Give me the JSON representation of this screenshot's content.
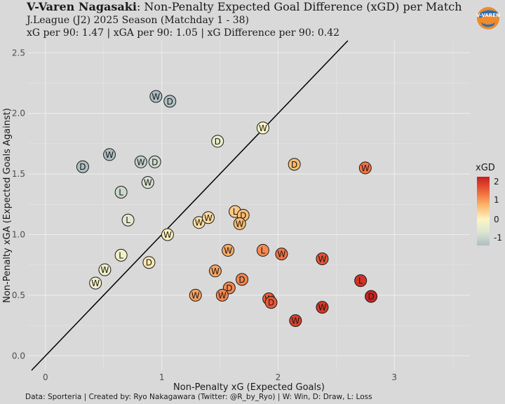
{
  "header": {
    "team": "V-Varen Nagasaki",
    "title_rest": ": Non-Penalty Expected Goal Difference (xGD) per Match",
    "subtitle1": "J.League (J2) 2025 Season (Matchday 1 - 38)",
    "subtitle2": "xG per 90: 1.47 | xGA per 90: 1.05 | xG Difference per 90: 0.42"
  },
  "logo": {
    "icon": "club-crest-icon",
    "text": "V-VAREN"
  },
  "caption": "Data: Sporteria | Created by: Ryo Nakagawara (Twitter: @R_by_Ryo) | W: Win, D: Draw, L: Loss",
  "legend": {
    "title": "xGD",
    "labels": [
      "2",
      "1",
      "0",
      "-1"
    ],
    "values": [
      2,
      1,
      0,
      -1
    ]
  },
  "colors": {
    "background": "#d9d9d9",
    "grid": "#eeeeee",
    "high": "#c81d1e",
    "mid": "#fdf5c4",
    "low": "#aebfc2"
  },
  "chart_data": {
    "type": "scatter",
    "xlabel": "Non-Penalty xG (Expected Goals)",
    "ylabel": "Non-Penalty xGA (Expected Goals Against)",
    "xlim": [
      -0.15,
      3.65
    ],
    "ylim": [
      -0.12,
      2.6
    ],
    "x_ticks": [
      "0",
      "1",
      "2",
      "3"
    ],
    "y_ticks": [
      "0.0",
      "0.5",
      "1.0",
      "1.5",
      "2.0",
      "2.5"
    ],
    "grid": true,
    "reference_line": "y = x",
    "points": [
      {
        "x": 0.95,
        "y": 2.14,
        "result": "W"
      },
      {
        "x": 1.07,
        "y": 2.1,
        "result": "D"
      },
      {
        "x": 0.55,
        "y": 1.66,
        "result": "W"
      },
      {
        "x": 0.32,
        "y": 1.56,
        "result": "D"
      },
      {
        "x": 0.82,
        "y": 1.6,
        "result": "W"
      },
      {
        "x": 0.94,
        "y": 1.6,
        "result": "D"
      },
      {
        "x": 0.88,
        "y": 1.43,
        "result": "W"
      },
      {
        "x": 0.65,
        "y": 1.35,
        "result": "L"
      },
      {
        "x": 0.71,
        "y": 1.12,
        "result": "L"
      },
      {
        "x": 1.05,
        "y": 1.0,
        "result": "W"
      },
      {
        "x": 0.65,
        "y": 0.83,
        "result": "L"
      },
      {
        "x": 0.89,
        "y": 0.77,
        "result": "D"
      },
      {
        "x": 0.51,
        "y": 0.71,
        "result": "W"
      },
      {
        "x": 0.43,
        "y": 0.6,
        "result": "W"
      },
      {
        "x": 1.87,
        "y": 1.88,
        "result": "W"
      },
      {
        "x": 1.48,
        "y": 1.77,
        "result": "D"
      },
      {
        "x": 2.14,
        "y": 1.58,
        "result": "D"
      },
      {
        "x": 2.75,
        "y": 1.55,
        "result": "W"
      },
      {
        "x": 1.32,
        "y": 1.1,
        "result": "W"
      },
      {
        "x": 1.4,
        "y": 1.14,
        "result": "W"
      },
      {
        "x": 1.63,
        "y": 1.19,
        "result": "L"
      },
      {
        "x": 1.7,
        "y": 1.16,
        "result": "D"
      },
      {
        "x": 1.67,
        "y": 1.09,
        "result": "W"
      },
      {
        "x": 1.57,
        "y": 0.87,
        "result": "W"
      },
      {
        "x": 1.87,
        "y": 0.87,
        "result": "L"
      },
      {
        "x": 2.03,
        "y": 0.84,
        "result": "W"
      },
      {
        "x": 2.38,
        "y": 0.8,
        "result": "W"
      },
      {
        "x": 1.46,
        "y": 0.7,
        "result": "W"
      },
      {
        "x": 1.69,
        "y": 0.63,
        "result": "D"
      },
      {
        "x": 1.58,
        "y": 0.56,
        "result": "D"
      },
      {
        "x": 1.29,
        "y": 0.5,
        "result": "W"
      },
      {
        "x": 1.52,
        "y": 0.5,
        "result": "W"
      },
      {
        "x": 2.71,
        "y": 0.62,
        "result": "L"
      },
      {
        "x": 2.8,
        "y": 0.49,
        "result": "D"
      },
      {
        "x": 1.92,
        "y": 0.47,
        "result": "W"
      },
      {
        "x": 1.94,
        "y": 0.44,
        "result": "D"
      },
      {
        "x": 2.38,
        "y": 0.4,
        "result": "W"
      },
      {
        "x": 2.15,
        "y": 0.29,
        "result": "W"
      }
    ]
  }
}
